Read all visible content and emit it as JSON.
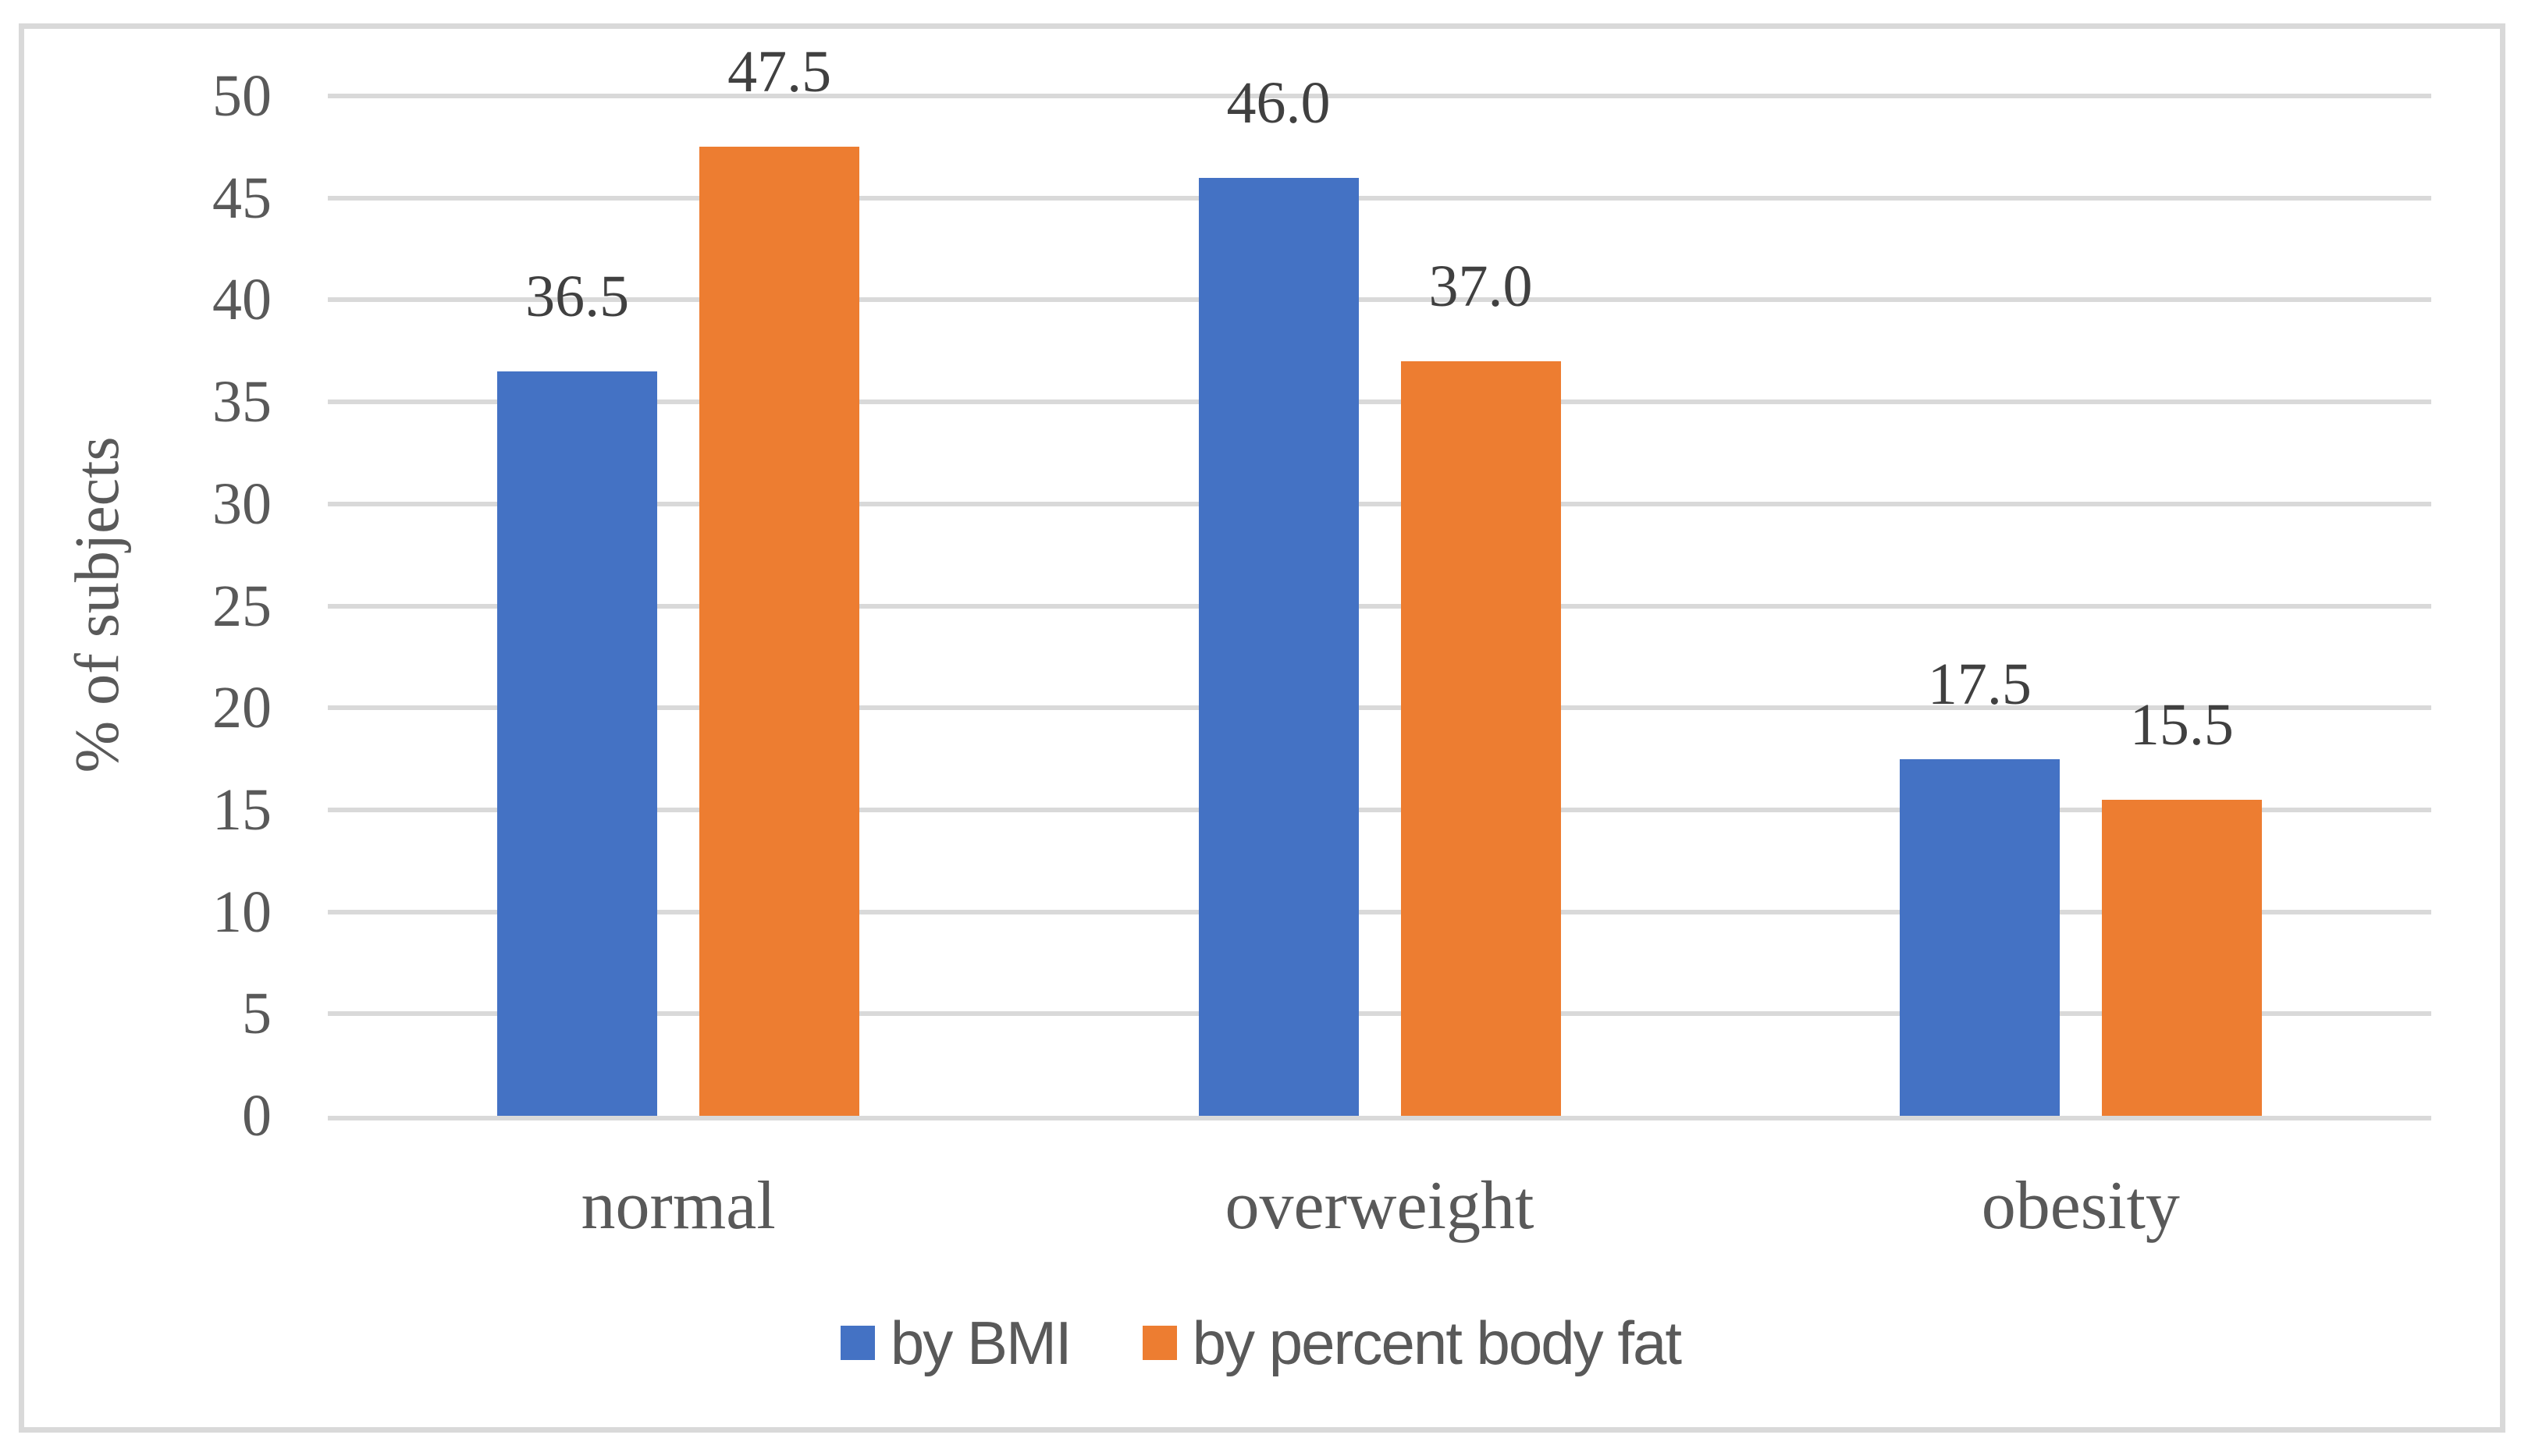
{
  "chart_data": {
    "type": "bar",
    "title": "",
    "categories": [
      "normal",
      "overweight",
      "obesity"
    ],
    "series": [
      {
        "name": "by BMI",
        "color": "#4472C4",
        "values": [
          36.5,
          46.0,
          17.5
        ],
        "labels": [
          "36.5",
          "46.0",
          "17.5"
        ]
      },
      {
        "name": "by percent body fat",
        "color": "#ED7D31",
        "values": [
          47.5,
          37.0,
          15.5
        ],
        "labels": [
          "47.5",
          "37.0",
          "15.5"
        ]
      }
    ],
    "xlabel": "",
    "ylabel": "% of subjects",
    "ylim": [
      0,
      50
    ],
    "yticks": [
      0,
      5,
      10,
      15,
      20,
      25,
      30,
      35,
      40,
      45,
      50
    ],
    "grid": true,
    "legend_position": "bottom-center",
    "data_labels_shown": true
  },
  "style": {
    "background": "#FFFFFF",
    "border_color": "#D9D9D9",
    "gridline_color": "#D9D9D9",
    "axis_text_color": "#595959",
    "data_label_color": "#404040",
    "legend_text_color": "#595959",
    "series_blue": "#4472C4",
    "series_orange": "#ED7D31"
  }
}
